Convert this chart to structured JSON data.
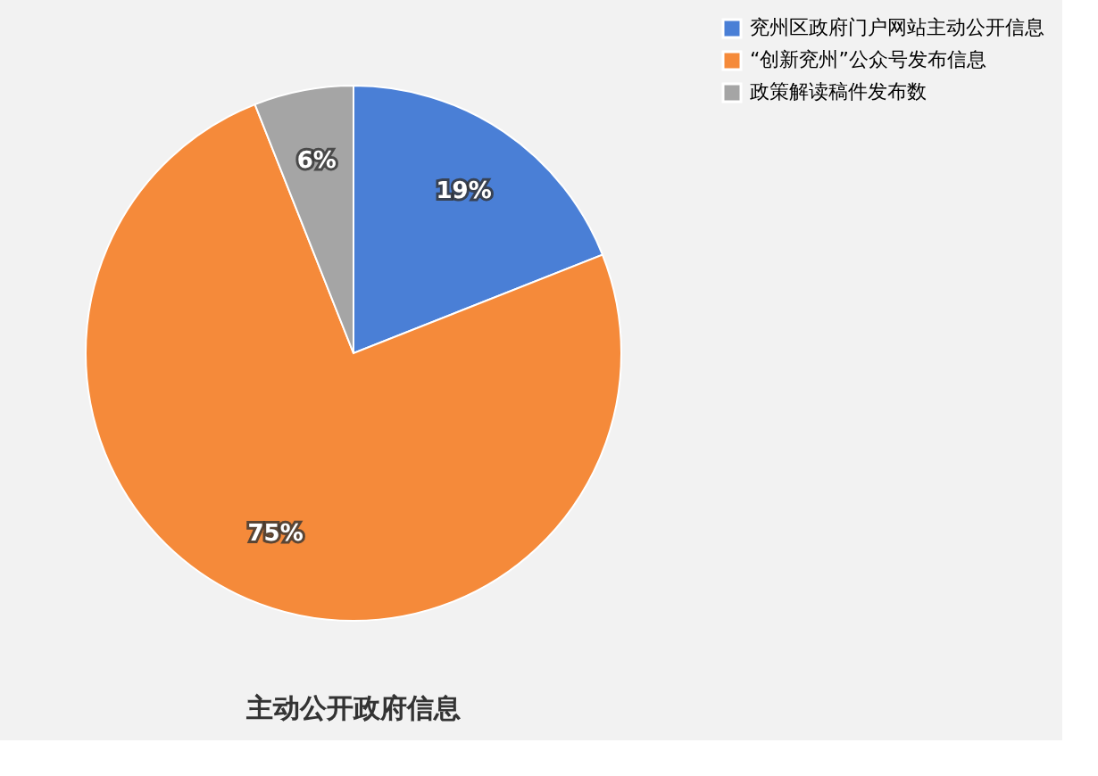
{
  "chart_data": {
    "type": "pie",
    "title": "主动公开政府信息",
    "categories": [
      "兖州区政府门户网站主动公开信息",
      "“创新兖州”公众号发布信息",
      "政策解读稿件发布数"
    ],
    "values": [
      19,
      75,
      6
    ],
    "colors": [
      "#4a7fd6",
      "#f58a3a",
      "#a5a5a5"
    ],
    "value_labels": [
      "19%",
      "75%",
      "6%"
    ],
    "legend": "right"
  }
}
